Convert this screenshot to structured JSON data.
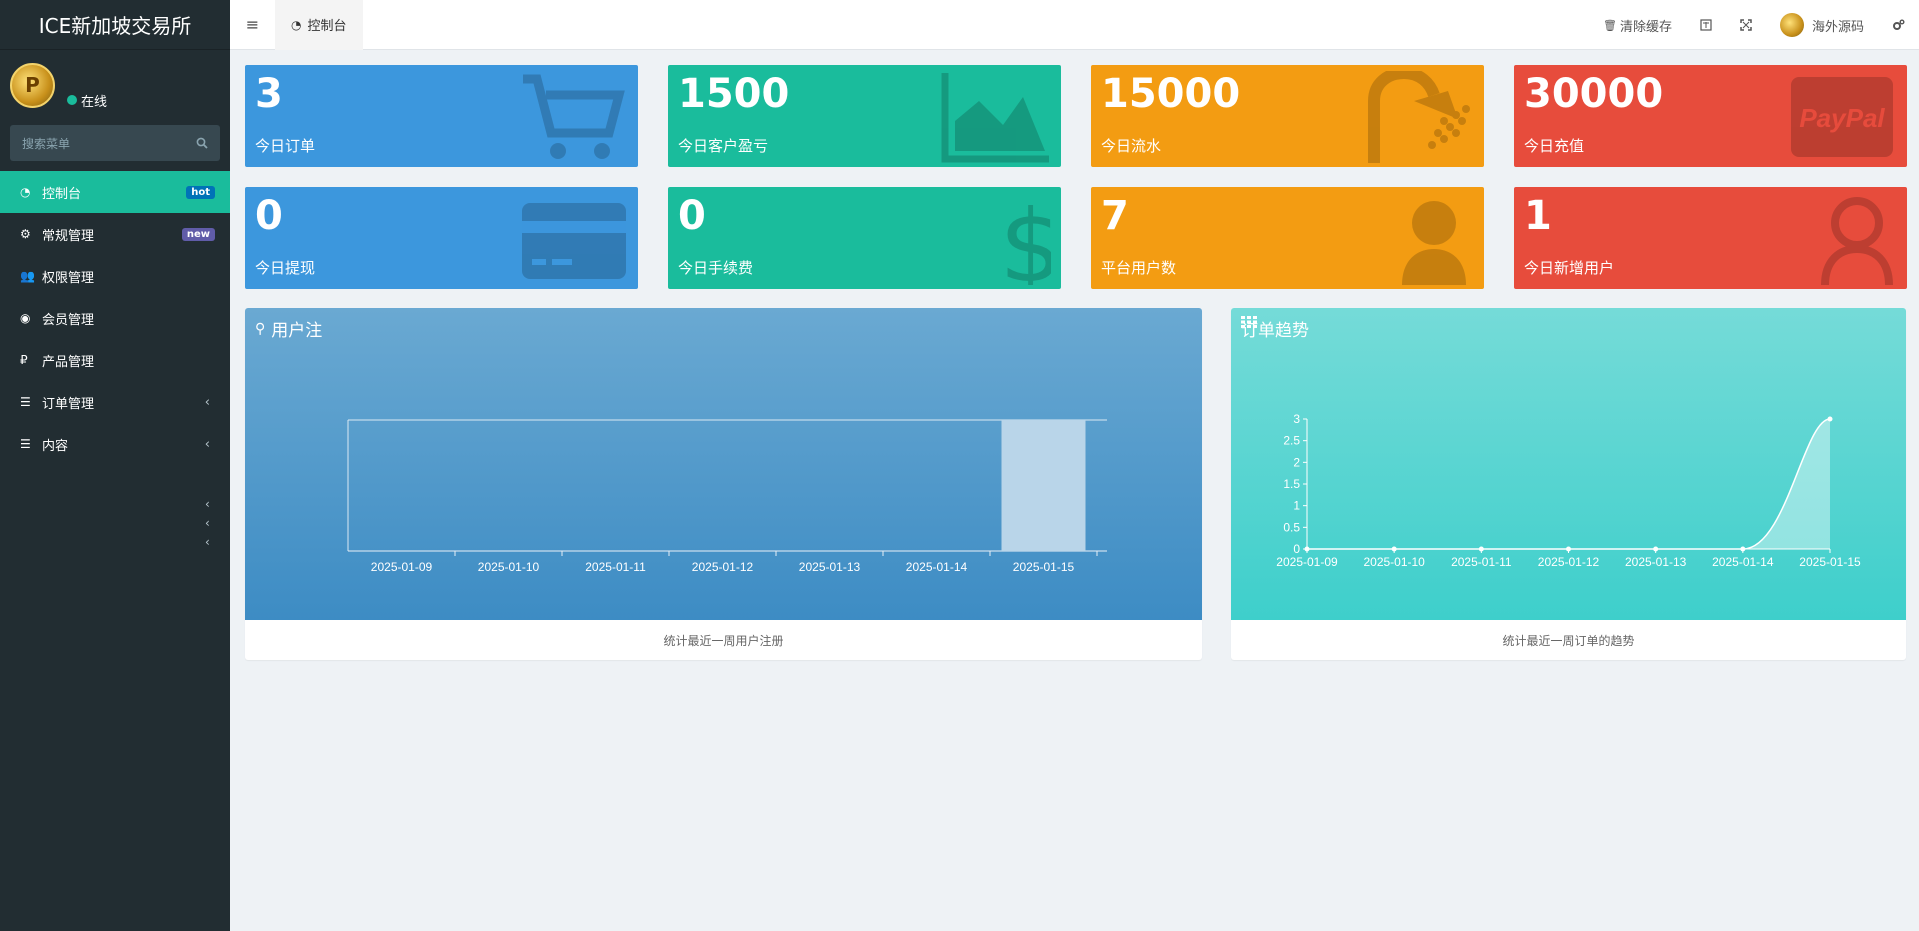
{
  "brand": {
    "title": "ICE新加坡交易所"
  },
  "user": {
    "status": "在线",
    "avatar_letter": "P"
  },
  "search": {
    "placeholder": "搜索菜单"
  },
  "sidebar": {
    "items": [
      {
        "label": "控制台",
        "icon": "dashboard-icon",
        "badge": "hot",
        "active": true
      },
      {
        "label": "常规管理",
        "icon": "cogs-icon",
        "badge": "new"
      },
      {
        "label": "权限管理",
        "icon": "users-icon"
      },
      {
        "label": "会员管理",
        "icon": "user-circle-icon"
      },
      {
        "label": "产品管理",
        "icon": "ruble-icon"
      },
      {
        "label": "订单管理",
        "icon": "list-icon",
        "chevron": "‹"
      },
      {
        "label": "内容",
        "icon": "list-icon",
        "chevron": "‹"
      }
    ],
    "extra_chevrons": [
      "‹",
      "‹",
      "‹"
    ]
  },
  "header": {
    "menu_toggle": "≡",
    "tab_label": "控制台",
    "clear_cache": "清除缓存",
    "username": "海外源码"
  },
  "stats": [
    {
      "value": "3",
      "label": "今日订单",
      "color": "#3c97dd",
      "icon": "cart-icon"
    },
    {
      "value": "1500",
      "label": "今日客户盈亏",
      "color": "#1abc9c",
      "icon": "area-chart-icon"
    },
    {
      "value": "15000",
      "label": "今日流水",
      "color": "#f39c12",
      "icon": "shower-icon"
    },
    {
      "value": "30000",
      "label": "今日充值",
      "color": "#e74c3c",
      "icon": "paypal-icon",
      "icon_text": "PayPal"
    },
    {
      "value": "0",
      "label": "今日提现",
      "color": "#3c97dd",
      "icon": "credit-card-icon"
    },
    {
      "value": "0",
      "label": "今日手续费",
      "color": "#1abc9c",
      "icon": "dollar-icon",
      "icon_text": "$"
    },
    {
      "value": "7",
      "label": "平台用户数",
      "color": "#f39c12",
      "icon": "user-icon"
    },
    {
      "value": "1",
      "label": "今日新增用户",
      "color": "#e74c3c",
      "icon": "user-outline-icon"
    }
  ],
  "panels": {
    "registration": {
      "title": "用户注",
      "footer": "统计最近一周用户注册"
    },
    "orders": {
      "title": "订单趋势",
      "footer": "统计最近一周订单的趋势"
    }
  },
  "chart_data": [
    {
      "type": "bar",
      "title": "用户注",
      "categories": [
        "2025-01-09",
        "2025-01-10",
        "2025-01-11",
        "2025-01-12",
        "2025-01-13",
        "2025-01-14",
        "2025-01-15"
      ],
      "values": [
        0,
        0,
        0,
        0,
        0,
        0,
        1
      ],
      "ylim": [
        0,
        1
      ],
      "xlabel": "",
      "ylabel": ""
    },
    {
      "type": "area",
      "title": "订单趋势",
      "categories": [
        "2025-01-09",
        "2025-01-10",
        "2025-01-11",
        "2025-01-12",
        "2025-01-13",
        "2025-01-14",
        "2025-01-15"
      ],
      "values": [
        0,
        0,
        0,
        0,
        0,
        0,
        3
      ],
      "yticks": [
        "0",
        "0.5",
        "1",
        "1.5",
        "2",
        "2.5",
        "3"
      ],
      "ylim": [
        0,
        3
      ],
      "xlabel": "",
      "ylabel": ""
    }
  ]
}
